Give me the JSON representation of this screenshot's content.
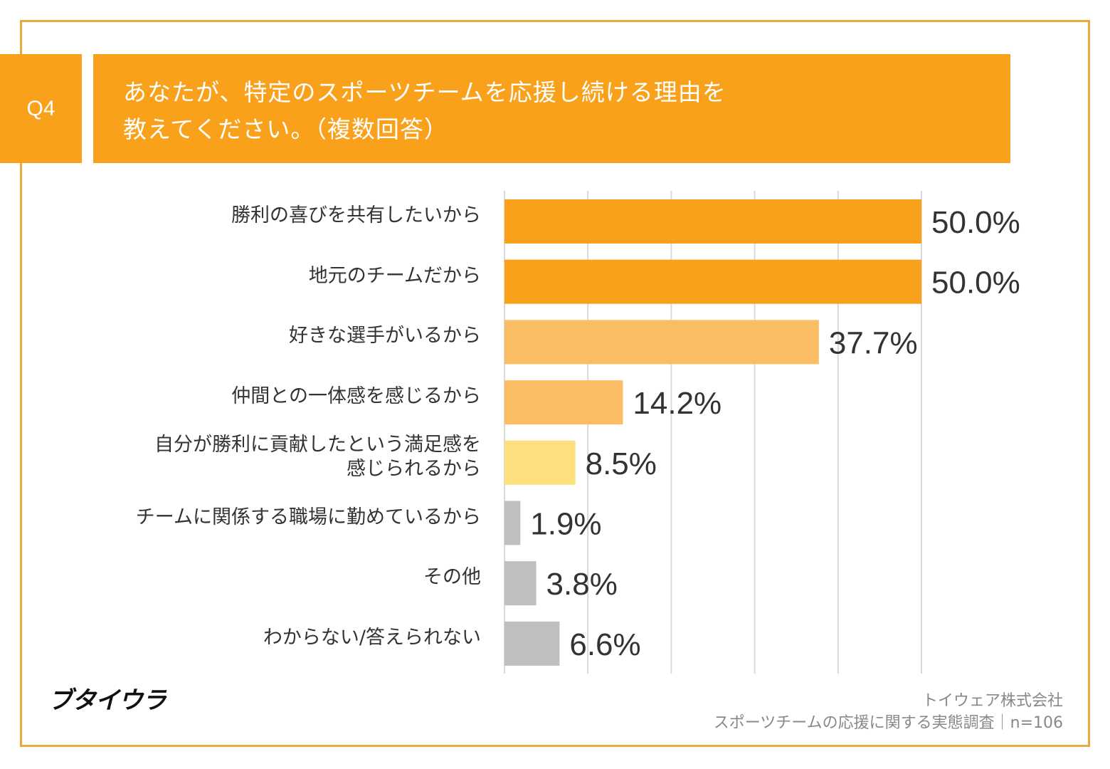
{
  "question_label": "Q4",
  "title_line1": "あなたが、特定のスポーツチームを応援し続ける理由を",
  "title_line2": "教えてください。（複数回答）",
  "chart_data": {
    "type": "bar",
    "orientation": "horizontal",
    "categories": [
      "勝利の喜びを共有したいから",
      "地元のチームだから",
      "好きな選手がいるから",
      "仲間との一体感を感じるから",
      "自分が勝利に貢献したという満足感を\n感じられるから",
      "チームに関係する職場に勤めているから",
      "その他",
      "わからない/答えられない"
    ],
    "values": [
      50.0,
      50.0,
      37.7,
      14.2,
      8.5,
      1.9,
      3.8,
      6.6
    ],
    "value_labels": [
      "50.0%",
      "50.0%",
      "37.7%",
      "14.2%",
      "8.5%",
      "1.9%",
      "3.8%",
      "6.6%"
    ],
    "colors": [
      "#F9A11B",
      "#F9A11B",
      "#FBBD63",
      "#FBBD63",
      "#FDDF7E",
      "#BFBFBF",
      "#BFBFBF",
      "#BFBFBF"
    ],
    "xlim": [
      0,
      50
    ],
    "grid_step": 10,
    "grid": true
  },
  "logo_text": "ブタイウラ",
  "source_company": "トイウェア株式会社",
  "source_survey": "スポーツチームの応援に関する実態調査｜n=106"
}
